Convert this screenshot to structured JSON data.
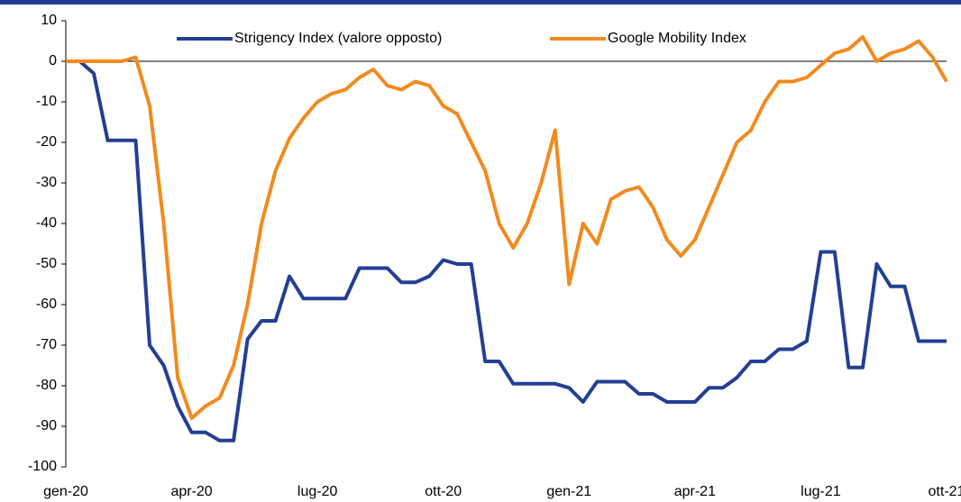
{
  "chart_data": {
    "type": "line",
    "categories": [
      "gen-20",
      null,
      null,
      null,
      null,
      null,
      null,
      null,
      null,
      "apr-20",
      null,
      null,
      null,
      null,
      null,
      null,
      null,
      null,
      "lug-20",
      null,
      null,
      null,
      null,
      null,
      null,
      null,
      null,
      "ott-20",
      null,
      null,
      null,
      null,
      null,
      null,
      null,
      null,
      "gen-21",
      null,
      null,
      null,
      null,
      null,
      null,
      null,
      null,
      "apr-21",
      null,
      null,
      null,
      null,
      null,
      null,
      null,
      null,
      "lug-21",
      null,
      null,
      null,
      null,
      null,
      null,
      null,
      null,
      "ott-21"
    ],
    "series": [
      {
        "name": "Strigency Index (valore opposto)",
        "color": "#233f94",
        "values": [
          0,
          0,
          -3,
          -19.5,
          -19.5,
          -19.5,
          -70,
          -75,
          -85,
          -91.5,
          -91.5,
          -93.5,
          -93.5,
          -68.5,
          -64,
          -64,
          -53,
          -58.5,
          -58.5,
          -58.5,
          -58.5,
          -51,
          -51,
          -51,
          -54.5,
          -54.5,
          -53,
          -49,
          -50,
          -50,
          -74,
          -74,
          -79.5,
          -79.5,
          -79.5,
          -79.5,
          -80.5,
          -84,
          -79,
          -79,
          -79,
          -82,
          -82,
          -84,
          -84,
          -84,
          -80.5,
          -80.5,
          -78,
          -74,
          -74,
          -71,
          -71,
          -69,
          -47,
          -47,
          -75.5,
          -75.5,
          -50,
          -55.5,
          -55.5,
          -69,
          -69,
          -69
        ]
      },
      {
        "name": "Google Mobility Index",
        "color": "#f28a1e",
        "values": [
          0,
          0,
          0,
          0,
          0,
          1,
          -11,
          -40,
          -78,
          -88,
          -85,
          -83,
          -75,
          -60,
          -40,
          -27,
          -19,
          -14,
          -10,
          -8,
          -7,
          -4,
          -2,
          -6,
          -7,
          -5,
          -6,
          -11,
          -13,
          -20,
          -27,
          -40,
          -46,
          -40,
          -30,
          -17,
          -55,
          -40,
          -45,
          -34,
          -32,
          -31,
          -36,
          -44,
          -48,
          -44,
          -36,
          -28,
          -20,
          -17,
          -10,
          -5,
          -5,
          -4,
          -1,
          2,
          3,
          6,
          0,
          2,
          3,
          5,
          1,
          -5
        ]
      }
    ],
    "ylim": [
      -100,
      10
    ],
    "yticks": [
      -100,
      -90,
      -80,
      -70,
      -60,
      -50,
      -40,
      -30,
      -20,
      -10,
      0,
      10
    ],
    "legend": "top"
  }
}
